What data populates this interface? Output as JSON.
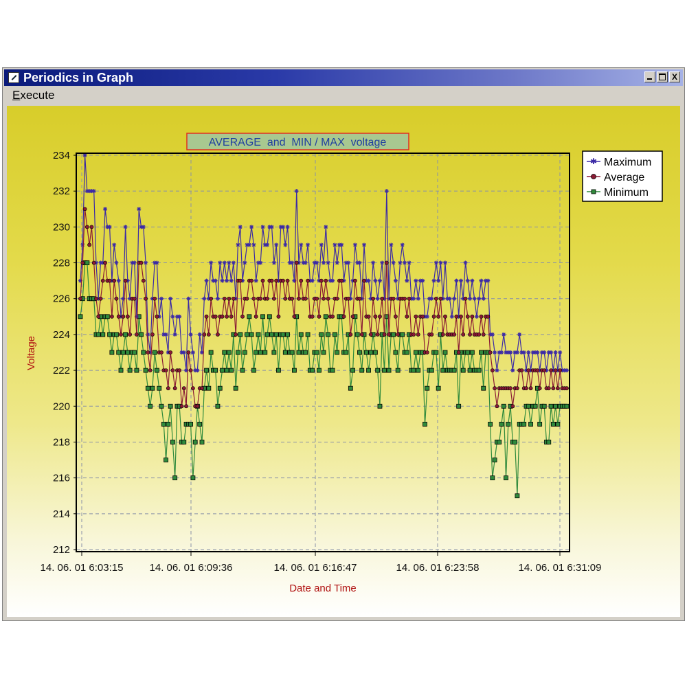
{
  "window": {
    "title": "Periodics in Graph",
    "controls": {
      "minimize": "_",
      "maximize": "□",
      "close": "X"
    }
  },
  "menu": {
    "items": [
      {
        "label": "Execute",
        "accel_char": "E"
      }
    ]
  },
  "colors": {
    "maximum": "#3b2aa6",
    "average": "#8a1a35",
    "minimum": "#2f8a3c",
    "grid": "#8890a8",
    "title_box_border": "#e03020",
    "title_box_fill": "#a8c890"
  },
  "chart_data": {
    "type": "line",
    "title": "AVERAGE  and  MIN / MAX  voltage",
    "ylabel": "Voltage",
    "xlabel": "Date and Time",
    "ylim": [
      212,
      234
    ],
    "yticks": [
      212,
      214,
      216,
      218,
      220,
      222,
      224,
      226,
      228,
      230,
      232,
      234
    ],
    "xticks": [
      "14. 06. 01  6:03:15",
      "14. 06. 01  6:09:36",
      "14. 06. 01  6:16:47",
      "14. 06. 01  6:23:58",
      "14. 06. 01  6:31:09"
    ],
    "legend": {
      "position": "top-right",
      "entries": [
        "Maximum",
        "Average",
        "Minimum"
      ]
    },
    "grid": true,
    "series": [
      {
        "name": "Maximum",
        "marker": "star",
        "values": [
          227,
          229,
          234,
          232,
          232,
          232,
          232,
          228,
          226,
          228,
          228,
          231,
          230,
          230,
          227,
          229,
          228,
          227,
          225,
          226,
          230,
          227,
          226,
          228,
          228,
          225,
          231,
          230,
          230,
          228,
          224,
          223,
          226,
          228,
          228,
          225,
          226,
          224,
          224,
          223,
          226,
          225,
          224,
          225,
          225,
          223,
          223,
          222,
          226,
          224,
          223,
          222,
          222,
          224,
          223,
          226,
          227,
          226,
          228,
          227,
          227,
          226,
          228,
          227,
          228,
          227,
          228,
          227,
          228,
          226,
          229,
          230,
          227,
          228,
          229,
          229,
          230,
          229,
          227,
          228,
          228,
          230,
          229,
          229,
          230,
          230,
          228,
          229,
          227,
          230,
          230,
          229,
          230,
          228,
          228,
          227,
          232,
          228,
          229,
          228,
          228,
          229,
          227,
          227,
          228,
          228,
          227,
          229,
          228,
          230,
          228,
          227,
          227,
          229,
          228,
          229,
          229,
          227,
          228,
          228,
          226,
          227,
          229,
          228,
          228,
          226,
          229,
          227,
          227,
          226,
          228,
          227,
          226,
          227,
          228,
          226,
          232,
          226,
          229,
          228,
          227,
          226,
          228,
          229,
          228,
          227,
          228,
          226,
          226,
          227,
          226,
          227,
          227,
          225,
          225,
          226,
          226,
          227,
          228,
          227,
          228,
          226,
          228,
          226,
          226,
          225,
          226,
          227,
          225,
          227,
          226,
          228,
          227,
          226,
          227,
          226,
          225,
          226,
          227,
          226,
          227,
          227,
          224,
          224,
          223,
          222,
          223,
          223,
          224,
          223,
          223,
          223,
          222,
          223,
          223,
          224,
          223,
          223,
          222,
          223,
          222,
          223,
          223,
          223,
          222,
          223,
          223,
          222,
          223,
          223,
          222,
          223,
          222,
          223,
          222,
          222,
          222
        ]
      },
      {
        "name": "Average",
        "marker": "circle",
        "values": [
          226,
          228,
          231,
          230,
          229,
          230,
          228,
          226,
          225,
          226,
          227,
          228,
          227,
          227,
          225,
          227,
          226,
          225,
          224,
          225,
          227,
          225,
          224,
          226,
          226,
          224,
          228,
          228,
          227,
          226,
          223,
          222,
          224,
          226,
          225,
          223,
          223,
          222,
          222,
          221,
          223,
          222,
          221,
          222,
          222,
          220,
          221,
          220,
          223,
          222,
          221,
          220,
          220,
          221,
          221,
          224,
          225,
          224,
          226,
          225,
          225,
          224,
          225,
          225,
          226,
          225,
          226,
          225,
          226,
          224,
          227,
          227,
          225,
          226,
          226,
          227,
          227,
          226,
          225,
          226,
          226,
          227,
          226,
          226,
          227,
          227,
          226,
          227,
          225,
          227,
          227,
          226,
          227,
          226,
          226,
          225,
          228,
          226,
          227,
          226,
          226,
          227,
          225,
          225,
          226,
          226,
          225,
          227,
          226,
          227,
          226,
          225,
          225,
          226,
          226,
          227,
          227,
          225,
          226,
          226,
          224,
          225,
          227,
          226,
          226,
          224,
          227,
          225,
          225,
          224,
          226,
          225,
          224,
          225,
          226,
          224,
          228,
          224,
          226,
          226,
          225,
          224,
          226,
          226,
          226,
          225,
          226,
          224,
          224,
          225,
          224,
          225,
          225,
          223,
          223,
          224,
          224,
          225,
          226,
          225,
          226,
          224,
          225,
          224,
          224,
          224,
          224,
          225,
          223,
          225,
          224,
          226,
          225,
          224,
          225,
          224,
          224,
          224,
          225,
          224,
          225,
          225,
          223,
          222,
          221,
          220,
          221,
          221,
          221,
          221,
          221,
          221,
          220,
          221,
          221,
          222,
          222,
          221,
          221,
          222,
          221,
          222,
          222,
          222,
          221,
          222,
          222,
          221,
          221,
          222,
          221,
          222,
          221,
          222,
          221,
          221,
          221
        ]
      },
      {
        "name": "Minimum",
        "marker": "square",
        "values": [
          225,
          226,
          228,
          228,
          226,
          226,
          226,
          224,
          224,
          225,
          224,
          225,
          225,
          224,
          223,
          224,
          224,
          223,
          222,
          223,
          224,
          223,
          222,
          223,
          223,
          222,
          225,
          224,
          223,
          222,
          221,
          220,
          221,
          223,
          222,
          221,
          220,
          219,
          217,
          219,
          220,
          218,
          216,
          220,
          220,
          218,
          218,
          219,
          219,
          219,
          216,
          218,
          220,
          219,
          218,
          221,
          222,
          221,
          223,
          222,
          222,
          220,
          221,
          222,
          223,
          222,
          223,
          222,
          224,
          221,
          223,
          224,
          222,
          223,
          224,
          225,
          224,
          222,
          223,
          224,
          223,
          225,
          223,
          224,
          225,
          224,
          223,
          224,
          222,
          224,
          224,
          223,
          224,
          223,
          223,
          222,
          225,
          223,
          224,
          223,
          223,
          224,
          222,
          222,
          223,
          223,
          222,
          224,
          223,
          225,
          224,
          222,
          222,
          224,
          223,
          225,
          225,
          223,
          223,
          224,
          221,
          222,
          225,
          224,
          223,
          222,
          224,
          223,
          222,
          223,
          224,
          223,
          222,
          220,
          224,
          222,
          225,
          222,
          224,
          224,
          223,
          222,
          224,
          224,
          223,
          223,
          224,
          222,
          222,
          223,
          222,
          223,
          223,
          219,
          221,
          222,
          222,
          223,
          223,
          221,
          224,
          222,
          223,
          222,
          222,
          222,
          222,
          223,
          220,
          223,
          222,
          223,
          223,
          222,
          223,
          222,
          222,
          222,
          223,
          221,
          223,
          223,
          219,
          216,
          217,
          218,
          218,
          219,
          220,
          216,
          219,
          220,
          218,
          218,
          215,
          219,
          219,
          219,
          220,
          220,
          219,
          220,
          220,
          221,
          219,
          220,
          220,
          218,
          218,
          220,
          219,
          220,
          219,
          220,
          220,
          220,
          220
        ]
      }
    ]
  }
}
